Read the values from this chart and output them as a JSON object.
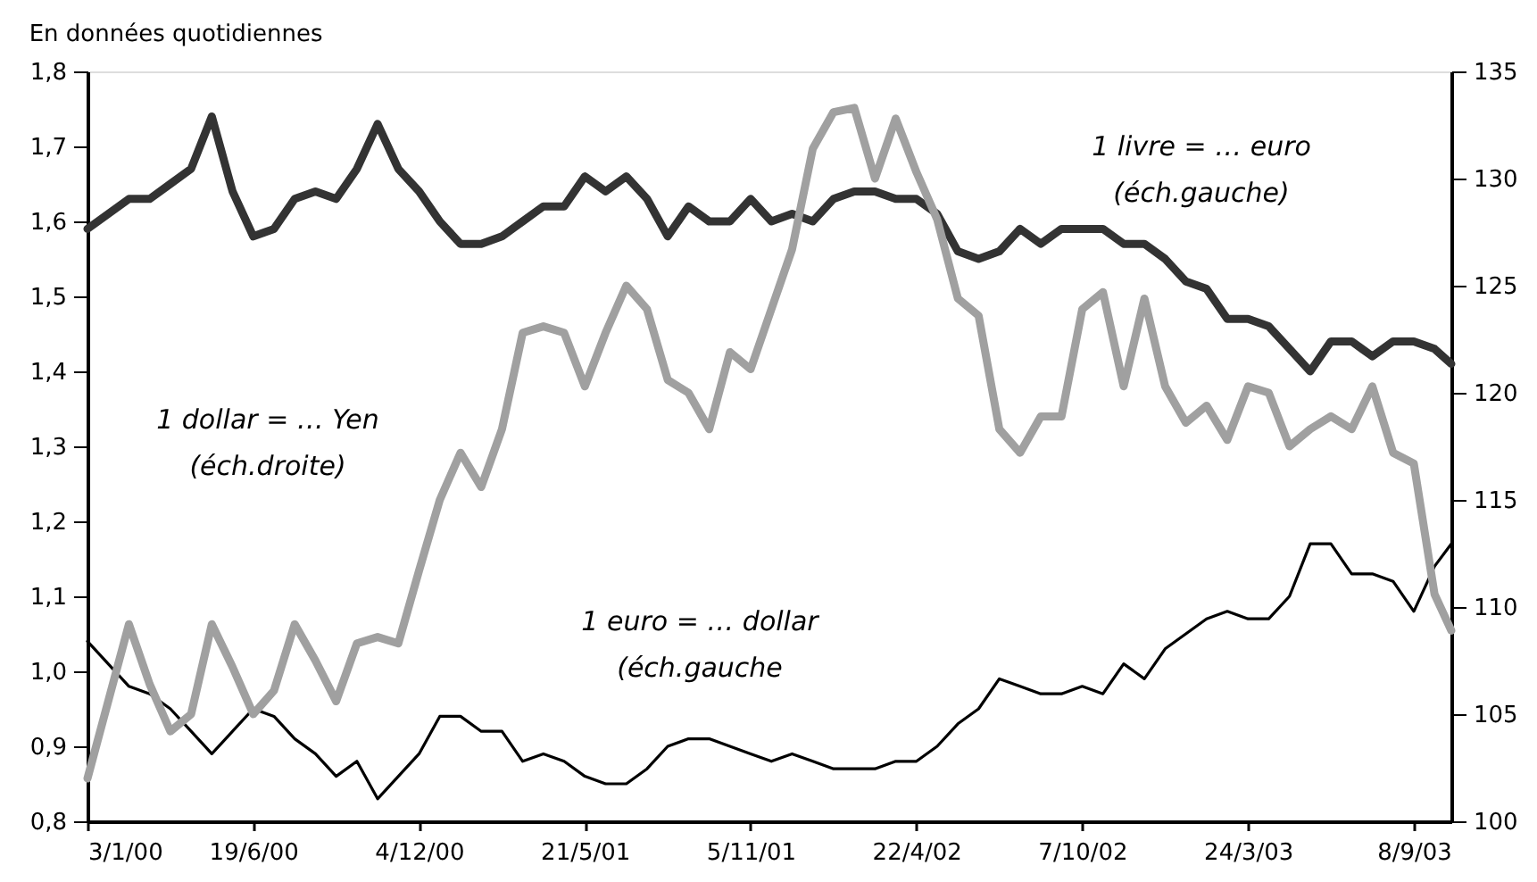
{
  "chart_data": {
    "type": "line",
    "title": "En données quotidiennes",
    "x": [
      "2000-01-03",
      "2000-01-24",
      "2000-02-14",
      "2000-03-06",
      "2000-03-27",
      "2000-04-17",
      "2000-05-08",
      "2000-05-29",
      "2000-06-19",
      "2000-07-10",
      "2000-07-31",
      "2000-08-21",
      "2000-09-11",
      "2000-10-02",
      "2000-10-23",
      "2000-11-13",
      "2000-12-04",
      "2000-12-25",
      "2001-01-15",
      "2001-02-05",
      "2001-02-26",
      "2001-03-19",
      "2001-04-09",
      "2001-04-30",
      "2001-05-21",
      "2001-06-11",
      "2001-07-02",
      "2001-07-23",
      "2001-08-13",
      "2001-09-03",
      "2001-09-24",
      "2001-10-15",
      "2001-11-05",
      "2001-11-26",
      "2001-12-17",
      "2002-01-07",
      "2002-01-28",
      "2002-02-18",
      "2002-03-11",
      "2002-04-01",
      "2002-04-22",
      "2002-05-13",
      "2002-06-03",
      "2002-06-24",
      "2002-07-15",
      "2002-08-05",
      "2002-08-26",
      "2002-09-16",
      "2002-10-07",
      "2002-10-28",
      "2002-11-18",
      "2002-12-09",
      "2002-12-30",
      "2003-01-20",
      "2003-02-10",
      "2003-03-03",
      "2003-03-24",
      "2003-04-14",
      "2003-05-05",
      "2003-05-26",
      "2003-06-16",
      "2003-07-07",
      "2003-07-28",
      "2003-08-18",
      "2003-09-08",
      "2003-09-29",
      "2003-10-16"
    ],
    "xlim": [
      "2000-01-03",
      "2003-10-16"
    ],
    "xticks": [
      {
        "value": "2000-01-03",
        "label": "3/1/00"
      },
      {
        "value": "2000-06-19",
        "label": "19/6/00"
      },
      {
        "value": "2000-12-04",
        "label": "4/12/00"
      },
      {
        "value": "2001-05-21",
        "label": "21/5/01"
      },
      {
        "value": "2001-11-05",
        "label": "5/11/01"
      },
      {
        "value": "2002-04-22",
        "label": "22/4/02"
      },
      {
        "value": "2002-10-07",
        "label": "7/10/02"
      },
      {
        "value": "2003-03-24",
        "label": "24/3/03"
      },
      {
        "value": "2003-09-08",
        "label": "8/9/03"
      }
    ],
    "ylim": [
      0.8,
      1.8
    ],
    "yticks": [
      {
        "value": 0.8,
        "label": "0,8"
      },
      {
        "value": 0.9,
        "label": "0,9"
      },
      {
        "value": 1.0,
        "label": "1,0"
      },
      {
        "value": 1.1,
        "label": "1,1"
      },
      {
        "value": 1.2,
        "label": "1,2"
      },
      {
        "value": 1.3,
        "label": "1,3"
      },
      {
        "value": 1.4,
        "label": "1,4"
      },
      {
        "value": 1.5,
        "label": "1,5"
      },
      {
        "value": 1.6,
        "label": "1,6"
      },
      {
        "value": 1.7,
        "label": "1,7"
      },
      {
        "value": 1.8,
        "label": "1,8"
      }
    ],
    "y2lim": [
      100,
      135
    ],
    "y2ticks": [
      100,
      105,
      110,
      115,
      120,
      125,
      130,
      135
    ],
    "grid": false,
    "marker": "none",
    "line_style": "solid",
    "series": [
      {
        "name": "1 livre = … euro\n(éch.gauche)",
        "color": "#333333",
        "values": [
          1.59,
          1.61,
          1.63,
          1.63,
          1.65,
          1.67,
          1.74,
          1.64,
          1.58,
          1.59,
          1.63,
          1.64,
          1.63,
          1.67,
          1.73,
          1.67,
          1.64,
          1.6,
          1.57,
          1.57,
          1.58,
          1.6,
          1.62,
          1.62,
          1.66,
          1.64,
          1.66,
          1.63,
          1.58,
          1.62,
          1.6,
          1.6,
          1.63,
          1.6,
          1.61,
          1.6,
          1.63,
          1.64,
          1.64,
          1.63,
          1.63,
          1.61,
          1.56,
          1.55,
          1.56,
          1.59,
          1.57,
          1.59,
          1.59,
          1.59,
          1.57,
          1.57,
          1.55,
          1.52,
          1.51,
          1.47,
          1.47,
          1.46,
          1.43,
          1.4,
          1.44,
          1.44,
          1.42,
          1.44,
          1.44,
          1.43,
          1.41
        ]
      },
      {
        "name": "1 dollar = … Yen\n(éch.droite)",
        "color": "#a0a0a0",
        "axis": "y2",
        "values": [
          102.0,
          105.6,
          109.2,
          106.4,
          104.2,
          105.0,
          109.2,
          107.2,
          105.0,
          106.1,
          109.2,
          107.5,
          105.6,
          108.3,
          108.6,
          108.3,
          111.7,
          115.0,
          117.2,
          115.6,
          118.3,
          122.8,
          123.1,
          122.8,
          120.3,
          122.8,
          125.0,
          123.9,
          120.6,
          120.0,
          118.3,
          121.9,
          121.1,
          123.9,
          126.7,
          131.4,
          133.1,
          133.3,
          130.0,
          132.8,
          130.3,
          128.1,
          124.4,
          123.6,
          118.3,
          117.2,
          118.9,
          118.9,
          123.9,
          124.7,
          120.3,
          124.4,
          120.3,
          118.6,
          119.4,
          117.8,
          120.3,
          120.0,
          117.5,
          118.3,
          118.9,
          118.3,
          120.3,
          117.2,
          116.7,
          110.6,
          108.9
        ]
      },
      {
        "name": "1 euro = … dollar\n(éch.gauche",
        "color": "#000000",
        "values": [
          1.04,
          1.01,
          0.98,
          0.97,
          0.95,
          0.92,
          0.89,
          0.92,
          0.95,
          0.94,
          0.91,
          0.89,
          0.86,
          0.88,
          0.83,
          0.86,
          0.89,
          0.94,
          0.94,
          0.92,
          0.92,
          0.88,
          0.89,
          0.88,
          0.86,
          0.85,
          0.85,
          0.87,
          0.9,
          0.91,
          0.91,
          0.9,
          0.89,
          0.88,
          0.89,
          0.88,
          0.87,
          0.87,
          0.87,
          0.88,
          0.88,
          0.9,
          0.93,
          0.95,
          0.99,
          0.98,
          0.97,
          0.97,
          0.98,
          0.97,
          1.01,
          0.99,
          1.03,
          1.05,
          1.07,
          1.08,
          1.07,
          1.07,
          1.1,
          1.17,
          1.17,
          1.13,
          1.13,
          1.12,
          1.08,
          1.14,
          1.17
        ]
      }
    ]
  }
}
